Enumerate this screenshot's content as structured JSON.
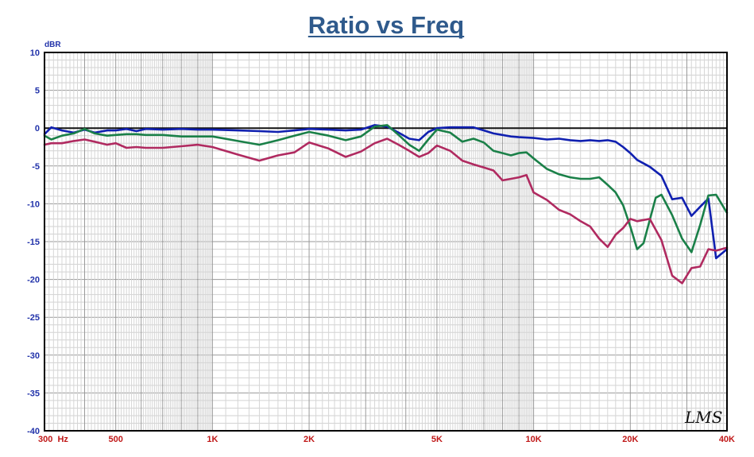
{
  "chart_data": {
    "type": "line",
    "title": "Ratio vs Freq",
    "xlabel": "",
    "ylabel": "dBR",
    "x_scale": "log",
    "xlim": [
      300,
      40000
    ],
    "ylim": [
      -40,
      10
    ],
    "y_ticks": [
      10,
      5,
      0,
      -5,
      -10,
      -15,
      -20,
      -25,
      -30,
      -35,
      -40
    ],
    "y_tick_labels": [
      "10",
      "5",
      "0",
      "-5",
      "-10",
      "-15",
      "-20",
      "-25",
      "-30",
      "-35",
      "-40"
    ],
    "x_ticks": [
      {
        "value": 300,
        "label": "300  Hz"
      },
      {
        "value": 500,
        "label": "500"
      },
      {
        "value": 1000,
        "label": "1K"
      },
      {
        "value": 2000,
        "label": "2K"
      },
      {
        "value": 5000,
        "label": "5K"
      },
      {
        "value": 10000,
        "label": "10K"
      },
      {
        "value": 20000,
        "label": "20K"
      },
      {
        "value": 40000,
        "label": "40K"
      }
    ],
    "grid": true,
    "reference_line": 0,
    "watermark": "LMS",
    "series": [
      {
        "color": "#1020b0",
        "points": [
          [
            300,
            -0.8
          ],
          [
            315,
            0.1
          ],
          [
            340,
            -0.3
          ],
          [
            370,
            -0.6
          ],
          [
            400,
            -0.2
          ],
          [
            430,
            -0.6
          ],
          [
            470,
            -0.3
          ],
          [
            500,
            -0.3
          ],
          [
            540,
            -0.1
          ],
          [
            580,
            -0.4
          ],
          [
            620,
            -0.1
          ],
          [
            700,
            -0.2
          ],
          [
            800,
            -0.1
          ],
          [
            900,
            -0.2
          ],
          [
            1000,
            -0.2
          ],
          [
            1200,
            -0.3
          ],
          [
            1400,
            -0.4
          ],
          [
            1600,
            -0.5
          ],
          [
            1800,
            -0.3
          ],
          [
            2000,
            -0.1
          ],
          [
            2300,
            -0.2
          ],
          [
            2600,
            -0.3
          ],
          [
            2900,
            -0.2
          ],
          [
            3200,
            0.4
          ],
          [
            3500,
            0.2
          ],
          [
            3800,
            -0.6
          ],
          [
            4100,
            -1.4
          ],
          [
            4400,
            -1.6
          ],
          [
            4700,
            -0.5
          ],
          [
            5000,
            0.0
          ],
          [
            5500,
            0.1
          ],
          [
            6000,
            0.1
          ],
          [
            6500,
            0.1
          ],
          [
            7000,
            -0.3
          ],
          [
            7500,
            -0.7
          ],
          [
            8000,
            -0.9
          ],
          [
            8500,
            -1.1
          ],
          [
            9000,
            -1.2
          ],
          [
            10000,
            -1.3
          ],
          [
            11000,
            -1.5
          ],
          [
            12000,
            -1.4
          ],
          [
            13000,
            -1.6
          ],
          [
            14000,
            -1.7
          ],
          [
            15000,
            -1.6
          ],
          [
            16000,
            -1.7
          ],
          [
            17000,
            -1.6
          ],
          [
            18000,
            -1.8
          ],
          [
            19000,
            -2.5
          ],
          [
            20000,
            -3.3
          ],
          [
            21000,
            -4.2
          ],
          [
            23000,
            -5.1
          ],
          [
            25000,
            -6.3
          ],
          [
            27000,
            -9.4
          ],
          [
            29000,
            -9.2
          ],
          [
            31000,
            -11.6
          ],
          [
            33000,
            -10.4
          ],
          [
            35000,
            -9.3
          ],
          [
            37000,
            -17.2
          ],
          [
            40000,
            -16.0
          ]
        ]
      },
      {
        "color": "#1a8048",
        "points": [
          [
            300,
            -1.0
          ],
          [
            315,
            -1.5
          ],
          [
            340,
            -1.0
          ],
          [
            370,
            -0.7
          ],
          [
            400,
            -0.1
          ],
          [
            430,
            -0.7
          ],
          [
            470,
            -1.0
          ],
          [
            500,
            -0.9
          ],
          [
            540,
            -0.8
          ],
          [
            580,
            -0.8
          ],
          [
            620,
            -0.9
          ],
          [
            700,
            -0.9
          ],
          [
            800,
            -1.1
          ],
          [
            900,
            -1.1
          ],
          [
            1000,
            -1.1
          ],
          [
            1200,
            -1.7
          ],
          [
            1400,
            -2.2
          ],
          [
            1600,
            -1.6
          ],
          [
            1800,
            -1.0
          ],
          [
            2000,
            -0.5
          ],
          [
            2300,
            -1.0
          ],
          [
            2600,
            -1.6
          ],
          [
            2900,
            -1.1
          ],
          [
            3200,
            0.2
          ],
          [
            3500,
            0.4
          ],
          [
            3800,
            -0.9
          ],
          [
            4100,
            -2.2
          ],
          [
            4400,
            -3.0
          ],
          [
            4700,
            -1.5
          ],
          [
            5000,
            -0.2
          ],
          [
            5500,
            -0.6
          ],
          [
            6000,
            -1.8
          ],
          [
            6500,
            -1.4
          ],
          [
            7000,
            -1.9
          ],
          [
            7500,
            -3.0
          ],
          [
            8000,
            -3.3
          ],
          [
            8500,
            -3.6
          ],
          [
            9000,
            -3.3
          ],
          [
            9500,
            -3.2
          ],
          [
            10000,
            -4.0
          ],
          [
            11000,
            -5.4
          ],
          [
            12000,
            -6.1
          ],
          [
            13000,
            -6.5
          ],
          [
            14000,
            -6.7
          ],
          [
            15000,
            -6.7
          ],
          [
            16000,
            -6.5
          ],
          [
            17000,
            -7.5
          ],
          [
            18000,
            -8.5
          ],
          [
            19000,
            -10.2
          ],
          [
            20000,
            -13.0
          ],
          [
            21000,
            -16.0
          ],
          [
            22000,
            -15.2
          ],
          [
            24000,
            -9.2
          ],
          [
            25000,
            -8.8
          ],
          [
            27000,
            -11.5
          ],
          [
            29000,
            -14.6
          ],
          [
            31000,
            -16.4
          ],
          [
            33000,
            -12.8
          ],
          [
            35000,
            -8.9
          ],
          [
            37000,
            -8.8
          ],
          [
            40000,
            -11.2
          ]
        ]
      },
      {
        "color": "#b02a60",
        "points": [
          [
            300,
            -2.2
          ],
          [
            315,
            -2.0
          ],
          [
            340,
            -2.0
          ],
          [
            370,
            -1.7
          ],
          [
            400,
            -1.5
          ],
          [
            430,
            -1.8
          ],
          [
            470,
            -2.2
          ],
          [
            500,
            -2.0
          ],
          [
            540,
            -2.6
          ],
          [
            580,
            -2.5
          ],
          [
            620,
            -2.6
          ],
          [
            700,
            -2.6
          ],
          [
            800,
            -2.4
          ],
          [
            900,
            -2.2
          ],
          [
            1000,
            -2.5
          ],
          [
            1200,
            -3.5
          ],
          [
            1400,
            -4.3
          ],
          [
            1600,
            -3.6
          ],
          [
            1800,
            -3.2
          ],
          [
            2000,
            -1.9
          ],
          [
            2300,
            -2.7
          ],
          [
            2600,
            -3.8
          ],
          [
            2900,
            -3.1
          ],
          [
            3200,
            -2.0
          ],
          [
            3500,
            -1.4
          ],
          [
            3800,
            -2.2
          ],
          [
            4100,
            -3.0
          ],
          [
            4400,
            -3.8
          ],
          [
            4700,
            -3.3
          ],
          [
            5000,
            -2.3
          ],
          [
            5500,
            -3.0
          ],
          [
            6000,
            -4.3
          ],
          [
            6500,
            -4.8
          ],
          [
            7000,
            -5.2
          ],
          [
            7500,
            -5.6
          ],
          [
            8000,
            -6.9
          ],
          [
            8500,
            -6.7
          ],
          [
            9000,
            -6.5
          ],
          [
            9500,
            -6.2
          ],
          [
            10000,
            -8.5
          ],
          [
            11000,
            -9.5
          ],
          [
            12000,
            -10.8
          ],
          [
            13000,
            -11.4
          ],
          [
            14000,
            -12.3
          ],
          [
            15000,
            -13.0
          ],
          [
            16000,
            -14.6
          ],
          [
            17000,
            -15.7
          ],
          [
            18000,
            -14.1
          ],
          [
            19000,
            -13.2
          ],
          [
            20000,
            -12.0
          ],
          [
            21000,
            -12.3
          ],
          [
            23000,
            -12.0
          ],
          [
            25000,
            -14.8
          ],
          [
            27000,
            -19.5
          ],
          [
            29000,
            -20.5
          ],
          [
            31000,
            -18.5
          ],
          [
            33000,
            -18.3
          ],
          [
            35000,
            -16.0
          ],
          [
            37000,
            -16.2
          ],
          [
            40000,
            -15.8
          ]
        ]
      }
    ]
  }
}
